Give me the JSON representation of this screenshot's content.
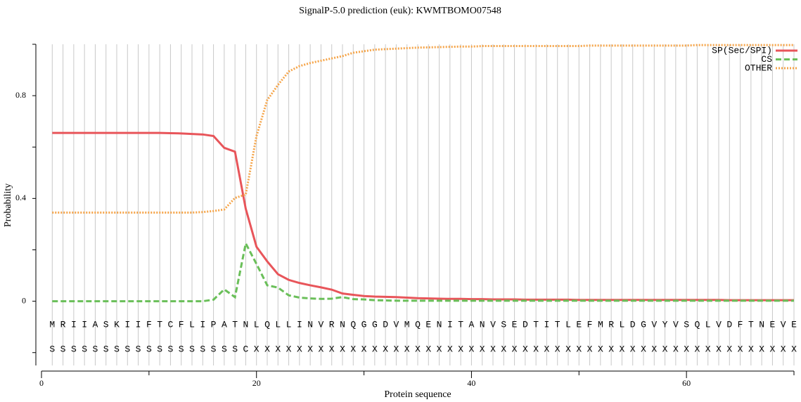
{
  "chart_data": {
    "type": "line",
    "title": "SignalP-5.0 prediction (euk):  KWMTBOMO07548",
    "x_label": "Protein sequence",
    "y_label": "Probability",
    "x": [
      1,
      2,
      3,
      4,
      5,
      6,
      7,
      8,
      9,
      10,
      11,
      12,
      13,
      14,
      15,
      16,
      17,
      18,
      19,
      20,
      21,
      22,
      23,
      24,
      25,
      26,
      27,
      28,
      29,
      30,
      31,
      32,
      33,
      34,
      35,
      36,
      37,
      38,
      39,
      40,
      41,
      42,
      43,
      44,
      45,
      46,
      47,
      48,
      49,
      50,
      51,
      52,
      53,
      54,
      55,
      56,
      57,
      58,
      59,
      60,
      61,
      62,
      63,
      64,
      65,
      66,
      67,
      68,
      69,
      70
    ],
    "sequence": [
      "M",
      "R",
      "I",
      "I",
      "A",
      "S",
      "K",
      "I",
      "I",
      "F",
      "T",
      "C",
      "F",
      "L",
      "I",
      "P",
      "A",
      "T",
      "N",
      "L",
      "Q",
      "L",
      "L",
      "I",
      "N",
      "V",
      "R",
      "N",
      "Q",
      "G",
      "G",
      "D",
      "V",
      "M",
      "Q",
      "E",
      "N",
      "I",
      "T",
      "A",
      "N",
      "V",
      "S",
      "E",
      "D",
      "T",
      "I",
      "T",
      "L",
      "E",
      "F",
      "M",
      "R",
      "L",
      "D",
      "G",
      "V",
      "Y",
      "V",
      "S",
      "Q",
      "L",
      "V",
      "D",
      "F",
      "T",
      "N",
      "E",
      "V",
      "E"
    ],
    "labels": [
      "S",
      "S",
      "S",
      "S",
      "S",
      "S",
      "S",
      "S",
      "S",
      "S",
      "S",
      "S",
      "S",
      "S",
      "S",
      "S",
      "S",
      "S",
      "C",
      "X",
      "X",
      "X",
      "X",
      "X",
      "X",
      "X",
      "X",
      "X",
      "X",
      "X",
      "X",
      "X",
      "X",
      "X",
      "X",
      "X",
      "X",
      "X",
      "X",
      "X",
      "X",
      "X",
      "X",
      "X",
      "X",
      "X",
      "X",
      "X",
      "X",
      "X",
      "X",
      "X",
      "X",
      "X",
      "X",
      "X",
      "X",
      "X",
      "X",
      "X",
      "X",
      "X",
      "X",
      "X",
      "X",
      "X",
      "X",
      "X",
      "X",
      "X"
    ],
    "series": [
      {
        "name": "SP(Sec/SPI)",
        "color": "#e8555a",
        "dash": "solid",
        "values": [
          0.655,
          0.655,
          0.655,
          0.655,
          0.655,
          0.655,
          0.655,
          0.655,
          0.655,
          0.655,
          0.655,
          0.654,
          0.653,
          0.651,
          0.649,
          0.643,
          0.597,
          0.582,
          0.36,
          0.212,
          0.155,
          0.105,
          0.083,
          0.071,
          0.062,
          0.054,
          0.045,
          0.03,
          0.025,
          0.02,
          0.018,
          0.017,
          0.016,
          0.014,
          0.012,
          0.011,
          0.01,
          0.009,
          0.009,
          0.008,
          0.008,
          0.007,
          0.007,
          0.007,
          0.006,
          0.006,
          0.006,
          0.006,
          0.006,
          0.005,
          0.005,
          0.005,
          0.005,
          0.005,
          0.005,
          0.005,
          0.005,
          0.005,
          0.005,
          0.005,
          0.005,
          0.005,
          0.005,
          0.004,
          0.004,
          0.004,
          0.004,
          0.004,
          0.004,
          0.004
        ]
      },
      {
        "name": "CS",
        "color": "#6abf59",
        "dash": "dashed",
        "values": [
          0,
          0,
          0,
          0,
          0,
          0,
          0,
          0,
          0,
          0,
          0,
          0,
          0,
          0,
          0,
          0.006,
          0.046,
          0.016,
          0.225,
          0.145,
          0.062,
          0.053,
          0.023,
          0.014,
          0.011,
          0.009,
          0.01,
          0.016,
          0.008,
          0.007,
          0.004,
          0.003,
          0.002,
          0.002,
          0.002,
          0.002,
          0.002,
          0.002,
          0.002,
          0.002,
          0.002,
          0.002,
          0.002,
          0.002,
          0.002,
          0.002,
          0.002,
          0.002,
          0.002,
          0.002,
          0.002,
          0.002,
          0.002,
          0.002,
          0.002,
          0.002,
          0.002,
          0.002,
          0.002,
          0.002,
          0.002,
          0.002,
          0.002,
          0.002,
          0.002,
          0.002,
          0.002,
          0.002,
          0.002,
          0.002
        ]
      },
      {
        "name": "OTHER",
        "color": "#f5a54a",
        "dash": "dotted",
        "values": [
          0.345,
          0.345,
          0.345,
          0.345,
          0.345,
          0.345,
          0.345,
          0.345,
          0.345,
          0.345,
          0.345,
          0.345,
          0.345,
          0.345,
          0.347,
          0.351,
          0.357,
          0.402,
          0.415,
          0.643,
          0.783,
          0.842,
          0.894,
          0.915,
          0.927,
          0.936,
          0.945,
          0.954,
          0.967,
          0.973,
          0.979,
          0.981,
          0.983,
          0.985,
          0.987,
          0.988,
          0.989,
          0.99,
          0.991,
          0.991,
          0.993,
          0.993,
          0.993,
          0.993,
          0.993,
          0.993,
          0.993,
          0.993,
          0.993,
          0.993,
          0.995,
          0.995,
          0.995,
          0.995,
          0.995,
          0.995,
          0.995,
          0.995,
          0.995,
          0.995,
          0.997,
          0.997,
          0.997,
          0.997,
          0.997,
          0.997,
          0.997,
          0.997,
          0.997,
          0.997
        ]
      }
    ],
    "xlim": [
      0,
      70
    ],
    "xticks": [
      0,
      20,
      40,
      60
    ],
    "xminorticks": [
      10,
      30,
      50,
      70
    ],
    "ylim": [
      -0.25,
      1.0
    ],
    "yticks": [
      0,
      0.4,
      0.8
    ],
    "yminorticks": [
      -0.2,
      0.2,
      0.6,
      1.0
    ],
    "grid": "x",
    "legend": "upper right"
  }
}
